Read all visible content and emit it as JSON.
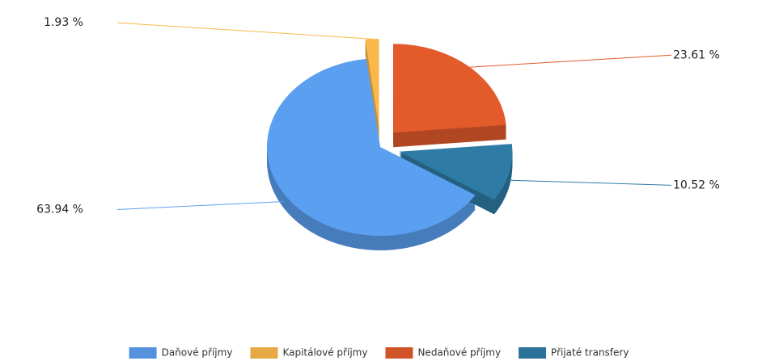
{
  "chart_data": {
    "type": "pie",
    "categories": [
      "Daňové příjmy",
      "Kapitálové příjmy",
      "Nedaňové příjmy",
      "Přijaté transfery"
    ],
    "values": [
      63.94,
      1.93,
      23.61,
      10.52
    ],
    "value_labels": [
      "63.94 %",
      "1.93 %",
      "23.61 %",
      "10.52 %"
    ],
    "colors": [
      "#5b9ff0",
      "#fbb84a",
      "#e35a2b",
      "#2e7ca6"
    ],
    "legend": "bottom"
  }
}
